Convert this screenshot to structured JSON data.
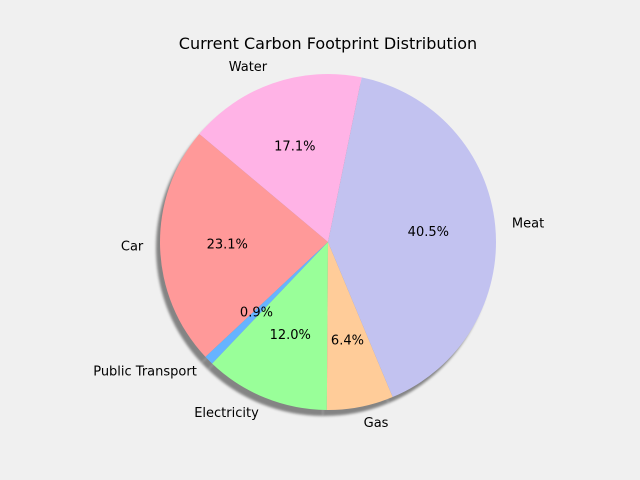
{
  "chart_data": {
    "type": "pie",
    "title": "Current Carbon Footprint Distribution",
    "categories": [
      "Car",
      "Public Transport",
      "Electricity",
      "Gas",
      "Meat",
      "Water"
    ],
    "values": [
      23.1,
      0.9,
      12.0,
      6.4,
      40.5,
      17.1
    ],
    "value_labels": [
      "23.1%",
      "0.9%",
      "12.0%",
      "6.4%",
      "40.5%",
      "17.1%"
    ],
    "colors": [
      "#ff9999",
      "#66b3ff",
      "#99ff99",
      "#ffcc99",
      "#c2c2f0",
      "#ffb3e6"
    ],
    "start_angle": 140,
    "direction": "counterclockwise",
    "shadow": true,
    "legend": "none"
  }
}
